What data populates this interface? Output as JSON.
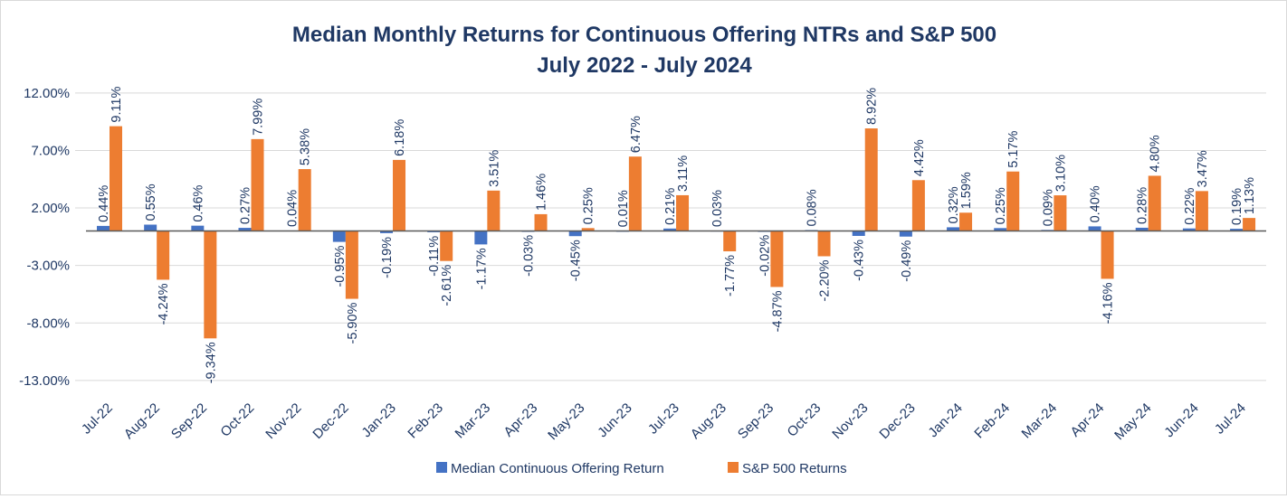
{
  "chart_data": {
    "type": "bar",
    "title": "Median Monthly Returns for Continuous Offering NTRs and S&P 500",
    "subtitle": "July 2022 - July 2024",
    "xlabel": "",
    "ylabel": "",
    "ylim": [
      -13,
      12
    ],
    "yticks": [
      "12.00%",
      "7.00%",
      "2.00%",
      "-3.00%",
      "-8.00%",
      "-13.00%"
    ],
    "ytick_values": [
      12,
      7,
      2,
      -3,
      -8,
      -13
    ],
    "grid": true,
    "legend_position": "bottom",
    "categories": [
      "Jul-22",
      "Aug-22",
      "Sep-22",
      "Oct-22",
      "Nov-22",
      "Dec-22",
      "Jan-23",
      "Feb-23",
      "Mar-23",
      "Apr-23",
      "May-23",
      "Jun-23",
      "Jul-23",
      "Aug-23",
      "Sep-23",
      "Oct-23",
      "Nov-23",
      "Dec-23",
      "Jan-24",
      "Feb-24",
      "Mar-24",
      "Apr-24",
      "May-24",
      "Jun-24",
      "Jul-24"
    ],
    "series": [
      {
        "name": "Median Continuous Offering Return",
        "color": "#4472c4",
        "values": [
          0.44,
          0.55,
          0.46,
          0.27,
          0.04,
          -0.95,
          -0.19,
          -0.11,
          -1.17,
          -0.03,
          -0.45,
          0.01,
          0.21,
          0.03,
          -0.02,
          0.08,
          -0.43,
          -0.49,
          0.32,
          0.25,
          0.09,
          0.4,
          0.28,
          0.22,
          0.19
        ]
      },
      {
        "name": "S&P 500 Returns",
        "color": "#ed7d31",
        "values": [
          9.11,
          -4.24,
          -9.34,
          7.99,
          5.38,
          -5.9,
          6.18,
          -2.61,
          3.51,
          1.46,
          0.25,
          6.47,
          3.11,
          -1.77,
          -4.87,
          -2.2,
          8.92,
          4.42,
          1.59,
          5.17,
          3.1,
          -4.16,
          4.8,
          3.47,
          1.13
        ]
      }
    ],
    "title_color": "#1f3864",
    "label_color": "#1f3864"
  }
}
